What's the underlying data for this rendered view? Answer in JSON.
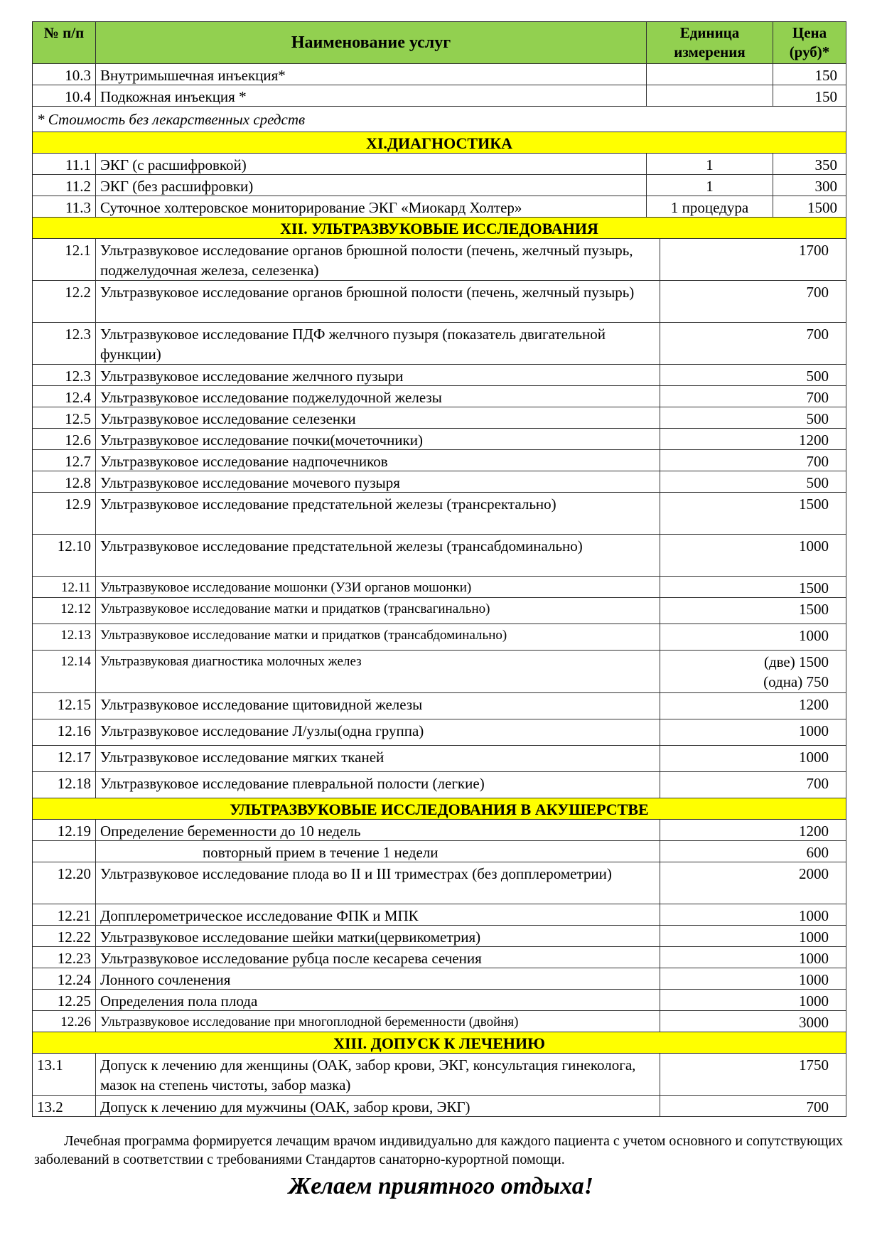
{
  "header": {
    "num": "№ п/п",
    "name": "Наименование услуг",
    "unit": "Единица измерения",
    "price": "Цена (руб)*"
  },
  "rows": [
    {
      "t": "a",
      "num": "10.3",
      "name": "Внутримышечная инъекция*",
      "unit": "",
      "price": "150"
    },
    {
      "t": "a",
      "num": "10.4",
      "name": "Подкожная инъекция *",
      "unit": "",
      "price": "150"
    },
    {
      "t": "note",
      "text": "* Стоимость без лекарственных средств"
    },
    {
      "t": "sec",
      "text": "XI.ДИАГНОСТИКА"
    },
    {
      "t": "a",
      "num": "11.1",
      "name": "ЭКГ (с расшифровкой)",
      "unit": "1",
      "price": "350"
    },
    {
      "t": "a",
      "num": "11.2",
      "name": "ЭКГ (без расшифровки)",
      "unit": "1",
      "price": "300"
    },
    {
      "t": "a",
      "num": "11.3",
      "name": "Суточное холтеровское мониторирование ЭКГ «Миокард Холтер»",
      "unit": "1 процедура",
      "price": "1500"
    },
    {
      "t": "sec",
      "text": "XII. УЛЬТРАЗВУКОВЫЕ ИССЛЕДОВАНИЯ"
    },
    {
      "t": "b",
      "h": "h2",
      "num": "12.1",
      "name": "Ультразвуковое исследование органов брюшной полости (печень, желчный пузырь, поджелудочная железа, селезенка)",
      "price": "1700"
    },
    {
      "t": "b",
      "h": "h2",
      "num": "12.2",
      "name": "Ультразвуковое исследование органов брюшной полости (печень, желчный пузырь)",
      "price": "700"
    },
    {
      "t": "b",
      "h": "h2",
      "num": "12.3",
      "name": "Ультразвуковое исследование ПДФ желчного пузыря (показатель двигательной функции)",
      "price": "700"
    },
    {
      "t": "b",
      "num": "12.3",
      "name": "Ультразвуковое исследование желчного пузыри",
      "price": "500"
    },
    {
      "t": "b",
      "num": "12.4",
      "name": "Ультразвуковое исследование поджелудочной железы",
      "price": "700"
    },
    {
      "t": "b",
      "num": "12.5",
      "name": "Ультразвуковое исследование селезенки",
      "price": "500"
    },
    {
      "t": "b",
      "num": "12.6",
      "name": "Ультразвуковое исследование почки(мочеточники)",
      "price": "1200"
    },
    {
      "t": "b",
      "num": "12.7",
      "name": "Ультразвуковое исследование надпочечников",
      "price": "700"
    },
    {
      "t": "b",
      "num": "12.8",
      "name": "Ультразвуковое исследование мочевого пузыря",
      "price": "500"
    },
    {
      "t": "b",
      "h": "h2",
      "num": "12.9",
      "name": "Ультразвуковое исследование предстательной железы (трансректально)",
      "price": "1500"
    },
    {
      "t": "b",
      "h": "h2",
      "num": "12.10",
      "name": "Ультразвуковое исследование предстательной железы (трансабдоминально)",
      "price": "1000"
    },
    {
      "t": "b",
      "s": 1,
      "num": "12.11",
      "name": "Ультразвуковое   исследование   мошонки (УЗИ органов мошонки)",
      "price": "1500"
    },
    {
      "t": "b",
      "s": 1,
      "h": "h15",
      "num": "12.12",
      "name": "Ультразвуковое исследование матки и придатков (трансвагинально)",
      "price": "1500"
    },
    {
      "t": "b",
      "s": 1,
      "h": "h15",
      "num": "12.13",
      "name": "Ультразвуковое исследование матки и придатков (трансабдоминально)",
      "price": "1000"
    },
    {
      "t": "b",
      "s": 1,
      "h": "h2b",
      "num": "12.14",
      "name": "Ультразвуковая  диагностика молочных желез",
      "price": "(две) 1500",
      "price2": "(одна)  750"
    },
    {
      "t": "b",
      "h": "h15",
      "num": "12.15",
      "name": "Ультразвуковое исследование щитовидной железы",
      "price": "1200"
    },
    {
      "t": "b",
      "h": "h15",
      "num": "12.16",
      "name": "Ультразвуковое исследование Л/узлы(одна группа)",
      "price": "1000"
    },
    {
      "t": "b",
      "h": "h15",
      "num": "12.17",
      "name": "Ультразвуковое исследование мягких тканей",
      "price": "1000"
    },
    {
      "t": "b",
      "h": "h15",
      "num": "12.18",
      "name": "Ультразвуковое исследование плевральной полости (легкие)",
      "price": "700"
    },
    {
      "t": "sec",
      "text": "УЛЬТРАЗВУКОВЫЕ ИССЛЕДОВАНИЯ В АКУШЕРСТВЕ"
    },
    {
      "t": "b",
      "num": "12.19",
      "name": "Определение беременности до 10 недель",
      "price": "1200"
    },
    {
      "t": "b",
      "ind": 1,
      "num": "",
      "name": "повторный прием в течение 1 недели",
      "price": "600"
    },
    {
      "t": "b",
      "h": "h2",
      "num": "12.20",
      "name": "Ультразвуковое исследование плода во II и III триместрах (без допплерометрии)",
      "price": "2000"
    },
    {
      "t": "b",
      "num": "12.21",
      "name": "Допплерометрическое исследование ФПК  и МПК",
      "price": "1000"
    },
    {
      "t": "b",
      "num": "12.22",
      "name": "Ультразвуковое исследование шейки матки(цервикометрия)",
      "price": "1000"
    },
    {
      "t": "b",
      "num": "12.23",
      "name": "Ультразвуковое исследование рубца после кесарева сечения",
      "price": "1000"
    },
    {
      "t": "b",
      "num": "12.24",
      "name": " Лонного сочленения",
      "price": "1000"
    },
    {
      "t": "b",
      "num": "12.25",
      "name": "Определения пола плода",
      "price": "1000"
    },
    {
      "t": "b",
      "s": 1,
      "num": "12.26",
      "name": "Ультразвуковое исследование при многоплодной беременности (двойня)",
      "price": "3000"
    },
    {
      "t": "sec",
      "text": "XIII. ДОПУСК К ЛЕЧЕНИЮ"
    },
    {
      "t": "b",
      "h": "h2",
      "left": 1,
      "num": "13.1",
      "name": "Допуск к лечению для женщины (ОАК, забор крови, ЭКГ, консультация гинеколога, мазок на степень чистоты, забор мазка)",
      "price": "1750"
    },
    {
      "t": "b",
      "left": 1,
      "num": "13.2",
      "name": "Допуск к лечению для мужчины (ОАК, забор крови, ЭКГ)",
      "price": "700"
    }
  ],
  "footer": "Лечебная программа формируется лечащим врачом индивидуально для каждого пациента с учетом основного и сопутствующих заболеваний в соответствии с требованиями Стандартов санаторно-курортной помощи.",
  "slogan": "Желаем приятного отдыха!",
  "colors": {
    "header_bg": "#92d050",
    "section_bg": "#ffff00"
  }
}
